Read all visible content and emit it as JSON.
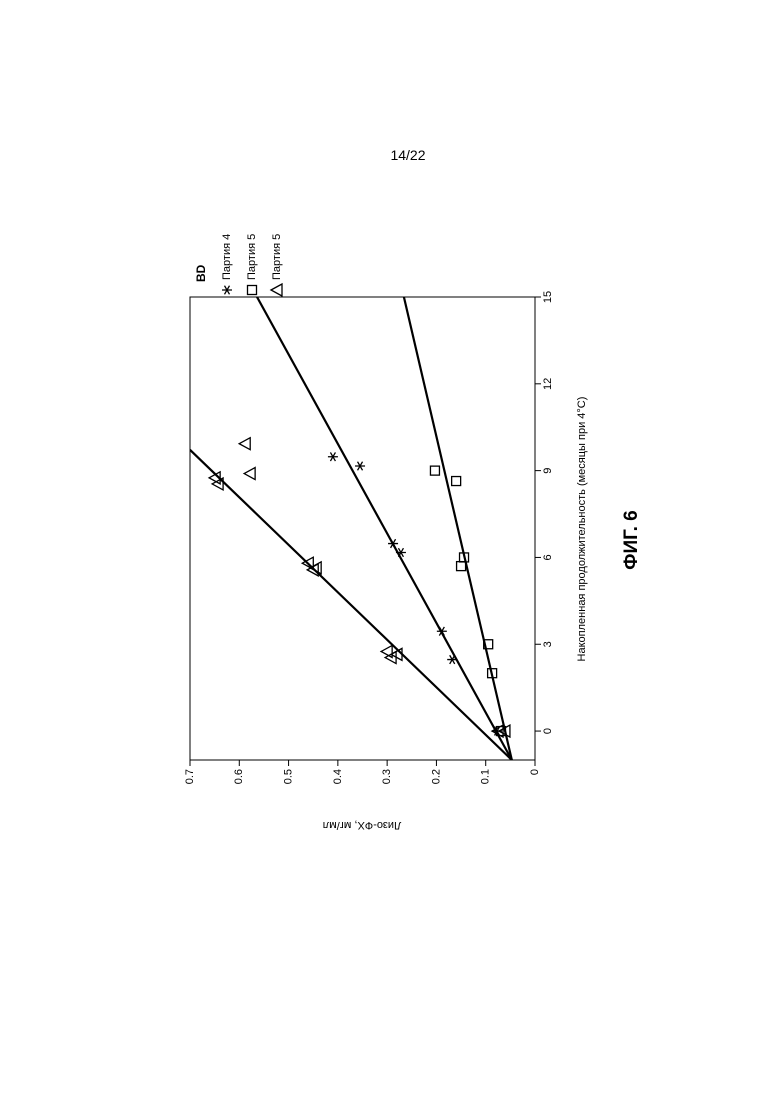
{
  "page_number": "14/22",
  "figure_caption": "ФИГ. 6",
  "chart_data": {
    "type": "scatter",
    "xlabel": "Накопленная продолжительность (месяцы при 4°C)",
    "ylabel": "Лизо-ФХ, мг/мл",
    "xlim": [
      -1,
      15
    ],
    "xticks": [
      0,
      3,
      6,
      9,
      12,
      15
    ],
    "ylim": [
      0,
      0.7
    ],
    "yticks": [
      0,
      0.1,
      0.2,
      0.3,
      0.4,
      0.5,
      0.6,
      0.7
    ],
    "legend_title": "BD",
    "series": [
      {
        "name": "Партия 4",
        "marker": "asterisk",
        "color": "#000000",
        "x": [
          0,
          2.47,
          3.45,
          6.17,
          6.48,
          9.16,
          9.48
        ],
        "values": [
          0.077,
          0.168,
          0.189,
          0.272,
          0.288,
          0.355,
          0.41
        ]
      },
      {
        "name": "Партия 5",
        "marker": "square",
        "color": "#000000",
        "x": [
          0,
          2.0,
          3.0,
          6.0,
          5.7,
          8.64,
          9.0
        ],
        "values": [
          0.069,
          0.087,
          0.095,
          0.144,
          0.15,
          0.16,
          0.203
        ]
      },
      {
        "name": "Партия 5",
        "marker": "triangle",
        "color": "#000000",
        "x": [
          0,
          0,
          2.75,
          2.54,
          2.65,
          5.8,
          5.57,
          5.64,
          9.93,
          8.9,
          8.75,
          8.54
        ],
        "values": [
          0.061,
          0.075,
          0.3,
          0.292,
          0.28,
          0.46,
          0.45,
          0.444,
          0.588,
          0.578,
          0.649,
          0.643
        ]
      }
    ],
    "fit_lines": [
      {
        "x": [
          -1,
          15
        ],
        "values": [
          0.047,
          0.564
        ]
      },
      {
        "x": [
          -1,
          15
        ],
        "values": [
          0.047,
          0.266
        ]
      },
      {
        "x": [
          -1,
          9.72
        ],
        "values": [
          0.047,
          0.7
        ]
      }
    ]
  }
}
